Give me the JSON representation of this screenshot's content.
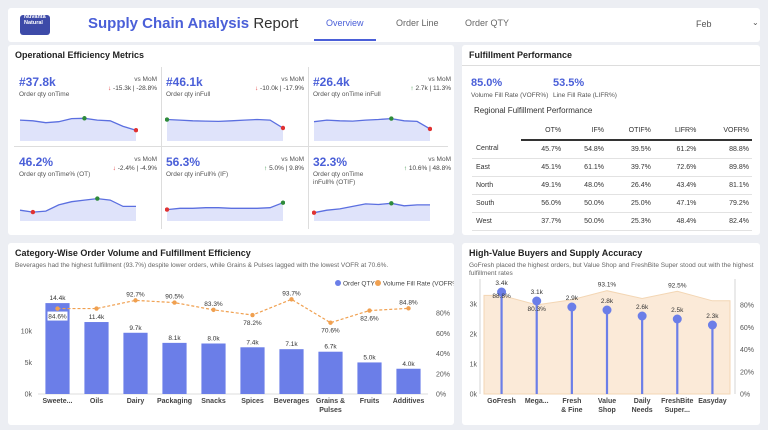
{
  "header": {
    "logo_text": "Nuvanta Natural",
    "title_main": "Supply Chain Analysis",
    "title_rest": "Report",
    "tabs": [
      {
        "label": "Overview",
        "active": true
      },
      {
        "label": "Order Line",
        "active": false
      },
      {
        "label": "Order QTY",
        "active": false
      }
    ],
    "month": "Feb"
  },
  "efficiency": {
    "title": "Operational Efficiency Metrics",
    "vs_label": "vs MoM",
    "kpis": [
      {
        "value": "#37.8k",
        "label": "Order qty onTime",
        "direction": "down",
        "change": "-15.3k | -28.8%",
        "trend": [
          60,
          58,
          52,
          55,
          65,
          66,
          60,
          58,
          40,
          28
        ]
      },
      {
        "value": "#46.1k",
        "label": "Order qty inFull",
        "direction": "down",
        "change": "-10.0k | -17.9%",
        "trend": [
          62,
          60,
          58,
          57,
          56,
          58,
          60,
          62,
          60,
          35
        ]
      },
      {
        "value": "#26.4k",
        "label": "Order qty onTime inFull",
        "direction": "up",
        "change": "2.7k | 11.3%",
        "trend": [
          55,
          60,
          58,
          57,
          60,
          62,
          65,
          58,
          56,
          32
        ]
      },
      {
        "value": "46.2%",
        "label": "Order qty onTime% (OT)",
        "direction": "down",
        "change": "-2.4% | -4.9%",
        "trend": [
          28,
          22,
          25,
          45,
          55,
          60,
          65,
          60,
          40,
          40
        ]
      },
      {
        "value": "56.3%",
        "label": "Order qty inFull% (IF)",
        "direction": "up",
        "change": "5.0% | 9.8%",
        "trend": [
          30,
          34,
          34,
          36,
          36,
          34,
          34,
          34,
          36,
          52
        ]
      },
      {
        "value": "32.3%",
        "label": "Order qty onTime inFull% (OTIF)",
        "direction": "up",
        "change": "10.6% | 48.8%",
        "trend": [
          20,
          28,
          32,
          40,
          48,
          46,
          50,
          42,
          45,
          45
        ]
      }
    ],
    "colors": {
      "line": "#5b6fe0",
      "fill": "#dfe3fa",
      "high": "#2e8b3a",
      "low": "#e03232"
    }
  },
  "fulfillment": {
    "title": "Fulfillment Performance",
    "vofr_value": "85.0%",
    "vofr_label": "Volume Fill Rate (VOFR%)",
    "lifr_value": "53.5%",
    "lifr_label": "Line Fill Rate (LIFR%)",
    "table_title": "Regional Fulfillment Performance",
    "columns": [
      "",
      "OT%",
      "IF%",
      "OTIF%",
      "LIFR%",
      "VOFR%"
    ],
    "rows": [
      [
        "Central",
        "45.7%",
        "54.8%",
        "39.5%",
        "61.2%",
        "88.8%"
      ],
      [
        "East",
        "45.1%",
        "61.1%",
        "39.7%",
        "72.6%",
        "89.8%"
      ],
      [
        "North",
        "49.1%",
        "48.0%",
        "26.4%",
        "43.4%",
        "81.1%"
      ],
      [
        "South",
        "56.0%",
        "50.0%",
        "25.0%",
        "47.1%",
        "79.2%"
      ],
      [
        "West",
        "37.7%",
        "50.0%",
        "25.3%",
        "48.4%",
        "82.4%"
      ]
    ]
  },
  "category_card": {
    "title": "Category-Wise Order Volume and Fulfillment Efficiency",
    "subtitle": "Beverages had the highest fulfillment (93.7%) despite lower orders, while Grains & Pulses lagged with the lowest VOFR at 70.6%."
  },
  "buyers_card": {
    "title": "High-Value Buyers and Supply Accuracy",
    "subtitle": "GoFresh placed the highest orders, but Value Shop and FreshBite Super stood out with the highest fulfillment rates"
  },
  "chart_data": [
    {
      "type": "bar",
      "categories": [
        "Sweete...",
        "Oils",
        "Dairy",
        "Packaging",
        "Snacks",
        "Spices",
        "Beverages",
        "Grains & Pulses",
        "Fruits",
        "Additives"
      ],
      "series": [
        {
          "name": "Order QTY",
          "type": "bar",
          "values": [
            14400,
            11400,
            9700,
            8100,
            8000,
            7400,
            7100,
            6700,
            5000,
            4000
          ],
          "labels": [
            "14.4k",
            "11.4k",
            "9.7k",
            "8.1k",
            "8.0k",
            "7.4k",
            "7.1k",
            "6.7k",
            "5.0k",
            "4.0k"
          ],
          "color": "#6b7ee8"
        },
        {
          "name": "Volume Fill Rate (VOFR%)",
          "type": "line",
          "values": [
            84.6,
            84.6,
            92.7,
            90.5,
            83.3,
            78.2,
            93.7,
            70.6,
            82.6,
            84.8
          ],
          "labels": [
            "84.6%",
            "",
            "92.7%",
            "90.5%",
            "83.3%",
            "78.2%",
            "93.7%",
            "70.6%",
            "82.6%",
            "84.8%"
          ],
          "color": "#f0a050"
        }
      ],
      "y_ticks": [
        "0k",
        "5k",
        "10k"
      ],
      "y_max": 16000,
      "y2_ticks": [
        "0%",
        "20%",
        "40%",
        "60%",
        "80%"
      ],
      "y2_max": 100,
      "legend": "top-right"
    },
    {
      "type": "lollipop",
      "categories": [
        "GoFresh",
        "Mega...",
        "Fresh & Fine",
        "Value Shop",
        "Daily Needs",
        "FreshBite Super...",
        "Easyday"
      ],
      "series": [
        {
          "name": "Order QTY",
          "values": [
            3400,
            3100,
            2900,
            2800,
            2600,
            2500,
            2300
          ],
          "labels": [
            "3.4k",
            "3.1k",
            "2.9k",
            "2.8k",
            "2.6k",
            "2.5k",
            "2.3k"
          ],
          "color": "#6b7ee8"
        },
        {
          "name": "VOFR%",
          "values": [
            88.8,
            80.3,
            85.0,
            93.1,
            86.0,
            92.5,
            84.0
          ],
          "labels": [
            "88.8%",
            "80.3%",
            "",
            "93.1%",
            "",
            "92.5%",
            ""
          ],
          "color": "#f3d6b4"
        }
      ],
      "y_ticks": [
        "0k",
        "1k",
        "2k",
        "3k"
      ],
      "y_max": 3700,
      "y2_ticks": [
        "0%",
        "20%",
        "40%",
        "60%",
        "80%"
      ],
      "y2_max": 100
    }
  ]
}
